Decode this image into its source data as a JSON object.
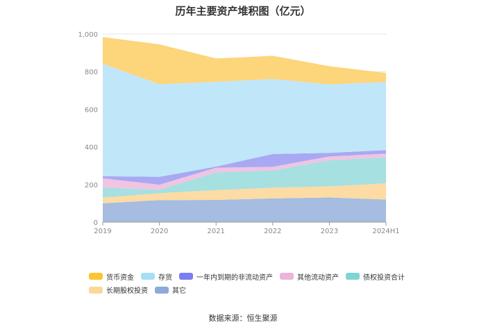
{
  "chart_data": {
    "type": "area",
    "stacked": true,
    "title": "历年主要资产堆积图（亿元）",
    "categories": [
      "2019",
      "2020",
      "2021",
      "2022",
      "2023",
      "2024H1"
    ],
    "y_ticks": [
      "0",
      "200",
      "400",
      "600",
      "800",
      "1,000"
    ],
    "ylim": [
      0,
      1000
    ],
    "series": [
      {
        "name": "其它",
        "color": "#a6bce0",
        "values": [
          100,
          117,
          118,
          126,
          131,
          120
        ]
      },
      {
        "name": "长期股权投资",
        "color": "#fcdba4",
        "values": [
          30,
          37,
          52,
          57,
          59,
          86
        ]
      },
      {
        "name": "债权投资合计",
        "color": "#a6e0e0",
        "values": [
          54,
          18,
          94,
          92,
          139,
          138
        ]
      },
      {
        "name": "其他流动资产",
        "color": "#f0c4e2",
        "values": [
          49,
          27,
          25,
          19,
          20,
          20
        ]
      },
      {
        "name": "一年内到期的非流动资产",
        "color": "#a8a9f2",
        "values": [
          11,
          42,
          6,
          68,
          19,
          19
        ]
      },
      {
        "name": "存货",
        "color": "#c0e6fa",
        "values": [
          598,
          492,
          451,
          399,
          364,
          362
        ]
      },
      {
        "name": "货币资金",
        "color": "#fdd57a",
        "values": [
          142,
          212,
          124,
          123,
          97,
          48
        ]
      }
    ],
    "legend": [
      {
        "name": "货币资金",
        "color": "#fbc433"
      },
      {
        "name": "存货",
        "color": "#a6ddf7"
      },
      {
        "name": "一年内到期的非流动资产",
        "color": "#7b7ef0"
      },
      {
        "name": "其他流动资产",
        "color": "#ebb4d9"
      },
      {
        "name": "债权投资合计",
        "color": "#7fd4d4"
      },
      {
        "name": "长期股权投资",
        "color": "#fcd79a"
      },
      {
        "name": "其它",
        "color": "#8ea9dc"
      }
    ],
    "source": "数据来源：恒生聚源"
  }
}
